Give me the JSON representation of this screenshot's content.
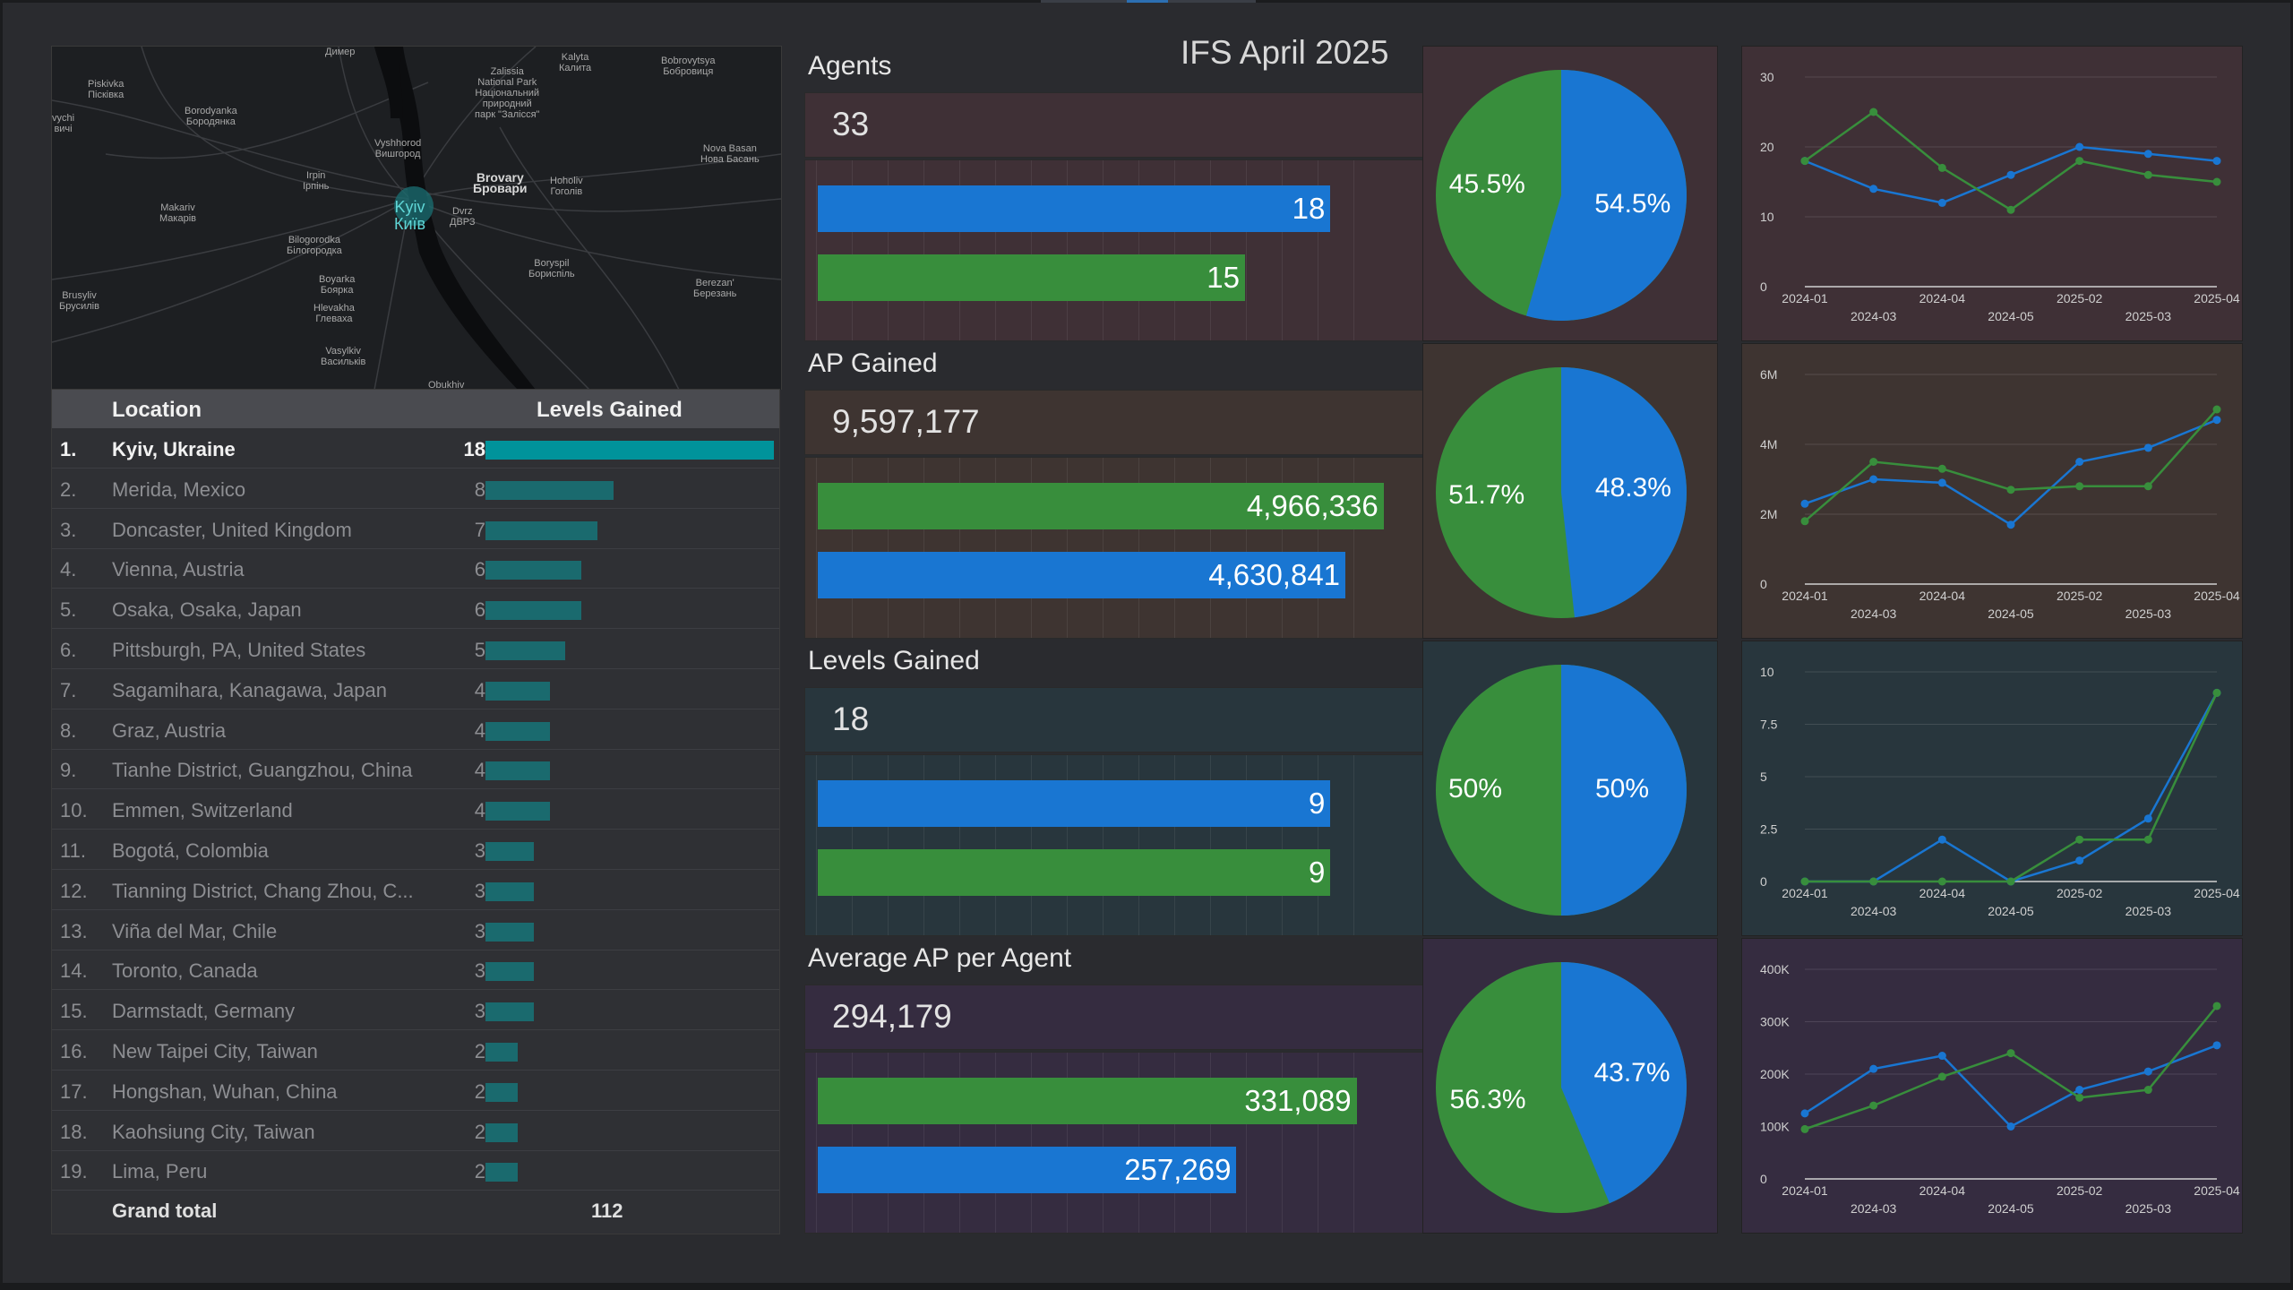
{
  "title": "IFS April 2025",
  "colors": {
    "blue": "#1976d2",
    "green": "#388e3c",
    "teal": "#00939b"
  },
  "map": {
    "labels": {
      "dymer": "Димер",
      "kalyta": "Kalyta\nКалита",
      "bobrovytsya": "Bobrovytsya\nБобровиця",
      "piskivka": "Piskivka\nПісківка",
      "borodyanka": "Borodyanka\nБородянка",
      "zalissia": "Zalissia\nNational Park\nНаціональний\nприродний\nпарк \"Залісся\"",
      "vychi": "vychi\nвичі",
      "vyshhorod": "Vyshhorod\nВишгород",
      "novabasan": "Nova Basan\nНова Басань",
      "irpin": "Irpin\nІрпінь",
      "brovary": "Brovary\nБровари",
      "hoholiv": "Hoholiv\nГоголів",
      "makariv": "Makariv\nМакарів",
      "kyiv": "Kyiv\nКиїв",
      "dvrz": "Dvrz\nДВРЗ",
      "bilohorodka": "Bilogorodka\nБілогородка",
      "boryspil": "Boryspil\nБориспіль",
      "boyarka": "Boyarka\nБоярка",
      "brusyliv": "Brusyliv\nБрусилів",
      "berezan": "Berezan'\nБерезань",
      "hlevakha": "Hlevakha\nГлеваха",
      "vasylkiv": "Vasylkiv\nВасильків",
      "obukhiv": "Obukhiv"
    }
  },
  "table": {
    "headers": {
      "location": "Location",
      "levels": "Levels Gained"
    },
    "rows": [
      {
        "rank": "1.",
        "location": "Kyiv, Ukraine",
        "value": 18
      },
      {
        "rank": "2.",
        "location": "Merida, Mexico",
        "value": 8
      },
      {
        "rank": "3.",
        "location": "Doncaster, United Kingdom",
        "value": 7
      },
      {
        "rank": "4.",
        "location": "Vienna, Austria",
        "value": 6
      },
      {
        "rank": "5.",
        "location": "Osaka, Osaka, Japan",
        "value": 6
      },
      {
        "rank": "6.",
        "location": "Pittsburgh, PA, United States",
        "value": 5
      },
      {
        "rank": "7.",
        "location": "Sagamihara, Kanagawa, Japan",
        "value": 4
      },
      {
        "rank": "8.",
        "location": "Graz, Austria",
        "value": 4
      },
      {
        "rank": "9.",
        "location": "Tianhe District, Guangzhou, China",
        "value": 4
      },
      {
        "rank": "10.",
        "location": "Emmen, Switzerland",
        "value": 4
      },
      {
        "rank": "11.",
        "location": "Bogotá, Colombia",
        "value": 3
      },
      {
        "rank": "12.",
        "location": "Tianning District, Chang Zhou, C...",
        "value": 3
      },
      {
        "rank": "13.",
        "location": "Viña del Mar, Chile",
        "value": 3
      },
      {
        "rank": "14.",
        "location": "Toronto, Canada",
        "value": 3
      },
      {
        "rank": "15.",
        "location": "Darmstadt, Germany",
        "value": 3
      },
      {
        "rank": "16.",
        "location": "New Taipei City, Taiwan",
        "value": 2
      },
      {
        "rank": "17.",
        "location": "Hongshan, Wuhan, China",
        "value": 2
      },
      {
        "rank": "18.",
        "location": "Kaohsiung City, Taiwan",
        "value": 2
      },
      {
        "rank": "19.",
        "location": "Lima, Peru",
        "value": 2
      }
    ],
    "footer": {
      "label": "Grand total",
      "total": "112"
    }
  },
  "sections": [
    {
      "label": "Agents",
      "total": "33",
      "bg": "#3f3036",
      "bars": [
        {
          "value": 18,
          "text": "18",
          "color": "blue"
        },
        {
          "value": 15,
          "text": "15",
          "color": "green"
        }
      ],
      "bar_max": 20,
      "pie": {
        "blue": "54.5%",
        "green": "45.5%",
        "blue_frac": 0.545
      }
    },
    {
      "label": "AP Gained",
      "total": "9,597,177",
      "bg": "#3e3431",
      "bars": [
        {
          "value": 4966336,
          "text": "4,966,336",
          "color": "green"
        },
        {
          "value": 4630841,
          "text": "4,630,841",
          "color": "blue"
        }
      ],
      "bar_max": 5000000,
      "pie": {
        "blue": "48.3%",
        "green": "51.7%",
        "blue_frac": 0.483
      }
    },
    {
      "label": "Levels Gained",
      "total": "18",
      "bg": "#28363d",
      "bars": [
        {
          "value": 9,
          "text": "9",
          "color": "blue"
        },
        {
          "value": 9,
          "text": "9",
          "color": "green"
        }
      ],
      "bar_max": 10,
      "pie": {
        "blue": "50%",
        "green": "50%",
        "blue_frac": 0.5
      }
    },
    {
      "label": "Average AP per Agent",
      "total": "294,179",
      "bg": "#352c40",
      "bars": [
        {
          "value": 331089,
          "text": "331,089",
          "color": "green"
        },
        {
          "value": 257269,
          "text": "257,269",
          "color": "blue"
        }
      ],
      "bar_max": 350000,
      "pie": {
        "blue": "43.7%",
        "green": "56.3%",
        "blue_frac": 0.437
      }
    }
  ],
  "chart_data": [
    {
      "type": "line",
      "x": [
        "2024-01",
        "2024-03",
        "2024-04",
        "2024-05",
        "2025-02",
        "2025-03",
        "2025-04"
      ],
      "yticks": [
        "0",
        "10",
        "20",
        "30"
      ],
      "ylim": [
        0,
        30
      ],
      "bg": "#3f3036",
      "series": [
        {
          "color": "blue",
          "values": [
            18,
            14,
            12,
            16,
            20,
            19,
            18
          ]
        },
        {
          "color": "green",
          "values": [
            18,
            25,
            17,
            11,
            18,
            16,
            15
          ]
        }
      ]
    },
    {
      "type": "line",
      "x": [
        "2024-01",
        "2024-03",
        "2024-04",
        "2024-05",
        "2025-02",
        "2025-03",
        "2025-04"
      ],
      "yticks": [
        "0",
        "2M",
        "4M",
        "6M"
      ],
      "ylim": [
        0,
        6000000
      ],
      "bg": "#3e3431",
      "series": [
        {
          "color": "blue",
          "values": [
            2300000,
            3000000,
            2900000,
            1700000,
            3500000,
            3900000,
            4700000
          ]
        },
        {
          "color": "green",
          "values": [
            1800000,
            3500000,
            3300000,
            2700000,
            2800000,
            2800000,
            5000000
          ]
        }
      ]
    },
    {
      "type": "line",
      "x": [
        "2024-01",
        "2024-03",
        "2024-04",
        "2024-05",
        "2025-02",
        "2025-03",
        "2025-04"
      ],
      "yticks": [
        "0",
        "2.5",
        "5",
        "7.5",
        "10"
      ],
      "ylim": [
        0,
        10
      ],
      "bg": "#28363d",
      "series": [
        {
          "color": "blue",
          "values": [
            0,
            0,
            2,
            0,
            1,
            3,
            9
          ]
        },
        {
          "color": "green",
          "values": [
            0,
            0,
            0,
            0,
            2,
            2,
            9
          ]
        }
      ]
    },
    {
      "type": "line",
      "x": [
        "2024-01",
        "2024-03",
        "2024-04",
        "2024-05",
        "2025-02",
        "2025-03",
        "2025-04"
      ],
      "yticks": [
        "0",
        "100K",
        "200K",
        "300K",
        "400K"
      ],
      "ylim": [
        0,
        400000
      ],
      "bg": "#352c40",
      "series": [
        {
          "color": "blue",
          "values": [
            125000,
            210000,
            235000,
            100000,
            170000,
            205000,
            255000
          ]
        },
        {
          "color": "green",
          "values": [
            95000,
            140000,
            195000,
            240000,
            155000,
            170000,
            330000
          ]
        }
      ]
    }
  ]
}
